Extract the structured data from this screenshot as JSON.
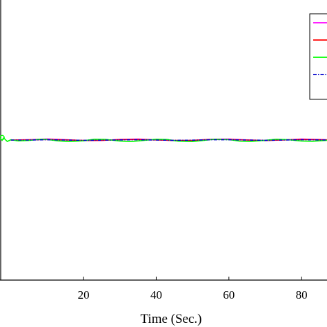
{
  "chart_data": {
    "type": "line",
    "title": "",
    "xlabel": "Time (Sec.)",
    "ylabel": "",
    "xlim": [
      -3,
      87
    ],
    "ylim": [
      -1,
      1
    ],
    "x_ticks": [
      20,
      40,
      60,
      80
    ],
    "grid": false,
    "legend_placement": "top-right",
    "series": [
      {
        "color": "#ff00ff",
        "style": "solid",
        "x": [
          0,
          5,
          10,
          15,
          20,
          25,
          30,
          35,
          40,
          45,
          50,
          55,
          60,
          65,
          70,
          75,
          80,
          85,
          87
        ],
        "y": [
          0.0,
          0.003,
          0.008,
          0.003,
          -0.004,
          -0.003,
          0.005,
          0.007,
          0.002,
          -0.004,
          -0.003,
          0.006,
          0.007,
          0.001,
          -0.004,
          0.001,
          0.007,
          0.004,
          0.002
        ]
      },
      {
        "color": "#ff0000",
        "style": "solid",
        "x": [
          0,
          5,
          10,
          15,
          20,
          25,
          30,
          35,
          40,
          45,
          50,
          55,
          60,
          65,
          70,
          75,
          80,
          85,
          87
        ],
        "y": [
          0.0,
          0.001,
          0.004,
          0.001,
          -0.003,
          -0.002,
          0.003,
          0.004,
          0.001,
          -0.003,
          -0.002,
          0.004,
          0.004,
          0.0,
          -0.003,
          0.001,
          0.004,
          0.002,
          0.001
        ]
      },
      {
        "color": "#00ff00",
        "style": "solid",
        "x": [
          -2.5,
          -2,
          -1,
          0,
          2,
          5,
          8,
          10,
          13,
          16,
          20,
          23,
          26,
          30,
          33,
          36,
          40,
          43,
          46,
          50,
          53,
          56,
          60,
          63,
          66,
          70,
          73,
          76,
          80,
          83,
          87
        ],
        "y": [
          -0.005,
          0.015,
          -0.01,
          0.002,
          -0.006,
          -0.003,
          0.006,
          0.004,
          -0.006,
          -0.011,
          -0.005,
          0.006,
          0.005,
          -0.007,
          -0.011,
          -0.004,
          0.006,
          0.004,
          -0.008,
          -0.011,
          -0.003,
          0.006,
          0.003,
          -0.008,
          -0.01,
          -0.002,
          0.006,
          0.003,
          -0.007,
          -0.009,
          -0.002
        ]
      },
      {
        "color": "#0000cc",
        "style": "dashdot",
        "x": [
          0,
          5,
          10,
          15,
          20,
          25,
          30,
          35,
          40,
          45,
          50,
          55,
          60,
          65,
          70,
          75,
          80,
          85,
          87
        ],
        "y": [
          0.0,
          0.0,
          0.002,
          0.0,
          -0.002,
          -0.001,
          0.001,
          0.002,
          0.0,
          -0.002,
          -0.001,
          0.002,
          0.002,
          0.0,
          -0.002,
          0.0,
          0.002,
          0.001,
          0.0
        ]
      }
    ]
  }
}
